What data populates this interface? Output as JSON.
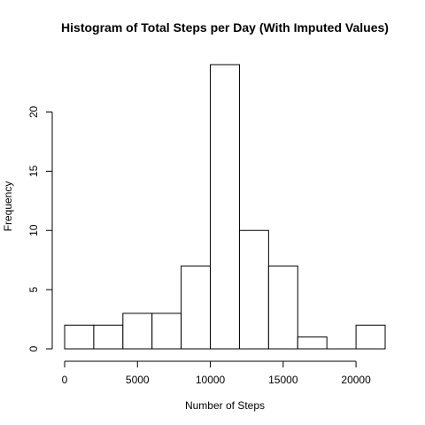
{
  "chart_data": {
    "type": "bar",
    "title": "Histogram of Total Steps per Day (With Imputed Values)",
    "xlabel": "Number of Steps",
    "ylabel": "Frequency",
    "bins": [
      {
        "from": 0,
        "to": 2000,
        "count": 2
      },
      {
        "from": 2000,
        "to": 4000,
        "count": 2
      },
      {
        "from": 4000,
        "to": 6000,
        "count": 3
      },
      {
        "from": 6000,
        "to": 8000,
        "count": 3
      },
      {
        "from": 8000,
        "to": 10000,
        "count": 7
      },
      {
        "from": 10000,
        "to": 12000,
        "count": 24
      },
      {
        "from": 12000,
        "to": 14000,
        "count": 10
      },
      {
        "from": 14000,
        "to": 16000,
        "count": 7
      },
      {
        "from": 16000,
        "to": 18000,
        "count": 1
      },
      {
        "from": 18000,
        "to": 20000,
        "count": 0
      },
      {
        "from": 20000,
        "to": 22000,
        "count": 2
      }
    ],
    "xlim": [
      0,
      22000
    ],
    "ylim": [
      0,
      24
    ],
    "x_ticks": [
      0,
      5000,
      10000,
      15000,
      20000
    ],
    "y_ticks": [
      0,
      5,
      10,
      15,
      20
    ],
    "grid": false,
    "bar_fill": "#ffffff",
    "bar_stroke": "#000000"
  }
}
